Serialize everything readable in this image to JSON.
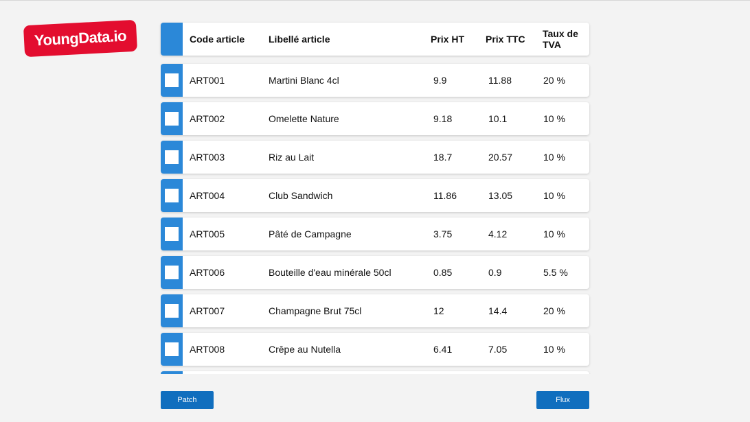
{
  "brand": {
    "logo_text": "YoungData.io",
    "accent": "#e30d2f"
  },
  "table": {
    "headers": {
      "code": "Code article",
      "libelle": "Libellé article",
      "prix_ht": "Prix HT",
      "prix_ttc": "Prix TTC",
      "taux_tva": "Taux de TVA"
    },
    "rows": [
      {
        "code": "ART001",
        "libelle": "Martini Blanc 4cl",
        "prix_ht": "9.9",
        "prix_ttc": "11.88",
        "taux_tva": "20 %"
      },
      {
        "code": "ART002",
        "libelle": "Omelette Nature",
        "prix_ht": "9.18",
        "prix_ttc": "10.1",
        "taux_tva": "10 %"
      },
      {
        "code": "ART003",
        "libelle": "Riz au Lait",
        "prix_ht": "18.7",
        "prix_ttc": "20.57",
        "taux_tva": "10 %"
      },
      {
        "code": "ART004",
        "libelle": "Club Sandwich",
        "prix_ht": "11.86",
        "prix_ttc": "13.05",
        "taux_tva": "10 %"
      },
      {
        "code": "ART005",
        "libelle": "Pâté de Campagne",
        "prix_ht": "3.75",
        "prix_ttc": "4.12",
        "taux_tva": "10 %"
      },
      {
        "code": "ART006",
        "libelle": "Bouteille d'eau minérale 50cl",
        "prix_ht": "0.85",
        "prix_ttc": "0.9",
        "taux_tva": "5.5 %"
      },
      {
        "code": "ART007",
        "libelle": "Champagne Brut 75cl",
        "prix_ht": "12",
        "prix_ttc": "14.4",
        "taux_tva": "20 %"
      },
      {
        "code": "ART008",
        "libelle": "Crêpe au Nutella",
        "prix_ht": "6.41",
        "prix_ttc": "7.05",
        "taux_tva": "10 %"
      }
    ],
    "selection_color": "#2b88d8"
  },
  "buttons": {
    "patch": "Patch",
    "flux": "Flux",
    "color": "#106ebe"
  }
}
